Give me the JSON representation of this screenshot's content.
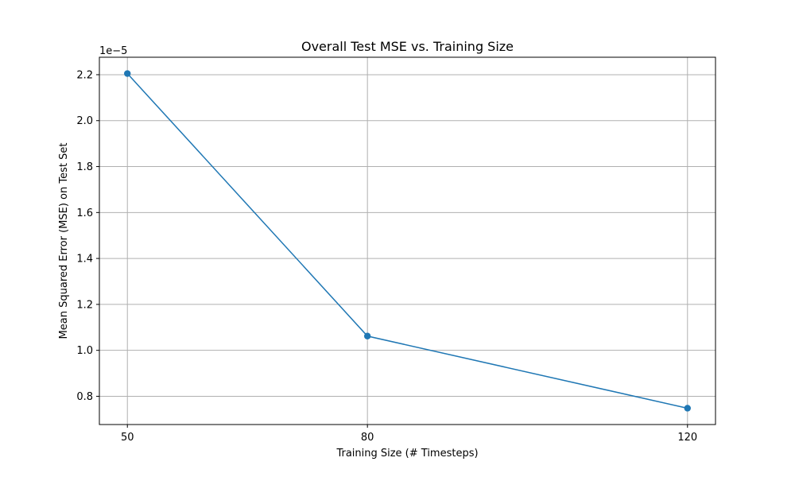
{
  "chart_data": {
    "type": "line",
    "title": "Overall Test MSE vs. Training Size",
    "xlabel": "Training Size (# Timesteps)",
    "ylabel": "Mean Squared Error (MSE) on Test Set",
    "y_offset_label": "1e−5",
    "x": [
      50,
      80,
      120
    ],
    "x_tick_labels": [
      "50",
      "80",
      "120"
    ],
    "series": [
      {
        "values": [
          2.205e-05,
          1.062e-05,
          7.48e-06
        ]
      }
    ],
    "y_ticks": [
      0.8,
      1.0,
      1.2,
      1.4,
      1.6,
      1.8,
      2.0,
      2.2
    ],
    "y_tick_labels": [
      "0.8",
      "1.0",
      "1.2",
      "1.4",
      "1.6",
      "1.8",
      "2.0",
      "2.2"
    ],
    "y_tick_scale": 1e-05,
    "xlim": [
      46.5,
      123.5
    ],
    "ylim": [
      6.77e-06,
      2.276e-05
    ],
    "grid": true,
    "line_color": "#1f77b4",
    "marker": "circle"
  }
}
